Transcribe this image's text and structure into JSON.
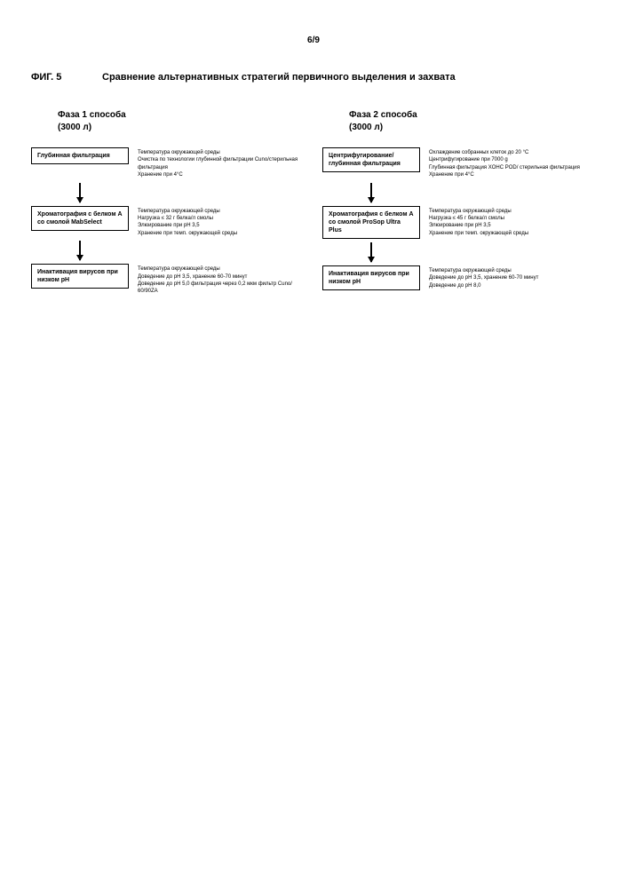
{
  "pageNumber": "6/9",
  "figLabel": "ФИГ. 5",
  "figTitle": "Сравнение альтернативных стратегий первичного выделения и захвата",
  "phase1": {
    "title1": "Фаза 1 способа",
    "title2": "(3000 л)",
    "step1": {
      "box": "Глубинная фильтрация",
      "note1": "Температура окружающей среды",
      "note2": "Очистка по технологии глубинной фильтрации Cuno/стерильная фильтрация",
      "note3": "Хранение при 4°C"
    },
    "step2": {
      "box": "Хроматография с белком A со смолой MabSelect",
      "note1": "Температура окружающей среды",
      "note2": "Нагрузка ≤ 32 г белка/л смолы",
      "note3": "Элюирование при pH 3,5",
      "note4": "Хранение при темп. окружающей среды"
    },
    "step3": {
      "box": "Инактивация вирусов при низком pH",
      "note1": "Температура окружающей среды",
      "note2": "Доведение до pH 3,5, хранение 60-70 минут",
      "note3": "Доведение до pH 5,0 фильтрация через 0,2 мкм фильтр Cuno/ 60/90ZA"
    }
  },
  "phase2": {
    "title1": "Фаза 2 способа",
    "title2": "(3000 л)",
    "step1": {
      "box": "Центрифугирование/ глубинная фильтрация",
      "note1": "Охлаждение собранных клеток до 20 °C",
      "note2": "Центрифугирование при 7000 g",
      "note3": "Глубинная фильтрация XOHC POD/ стерильная фильтрация",
      "note4": "Хранение при 4°C"
    },
    "step2": {
      "box": "Хроматография с белком A со смолой ProSop Ultra Plus",
      "note1": "Температура окружающей среды",
      "note2": "Нагрузка ≤ 45 г белка/л смолы",
      "note3": "Элюирование при pH 3,5",
      "note4": "Хранение при темп. окружающей среды"
    },
    "step3": {
      "box": "Инактивация вирусов при низком pH",
      "note1": "Температура окружающей среды",
      "note2": "Доведение до pH 3,5, хранение 60-70 минут",
      "note3": "Доведение до pH 8,0"
    }
  }
}
